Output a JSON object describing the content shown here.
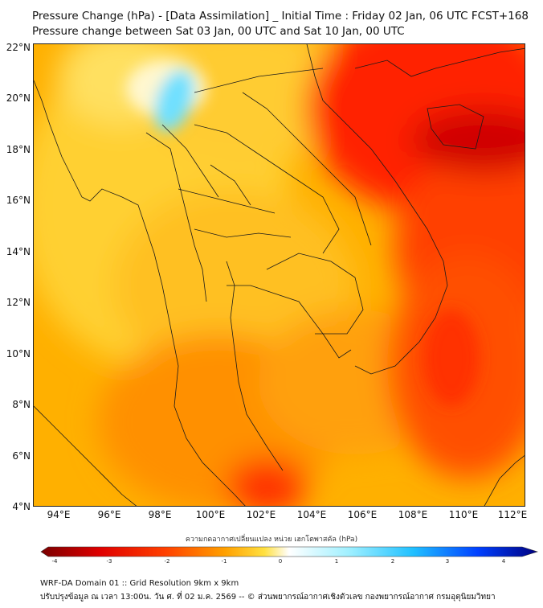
{
  "title": {
    "line1": "Pressure Change (hPa) - [Data Assimilation] _ Initial Time : Friday 02 Jan, 06 UTC FCST+168",
    "line2": "Pressure change between Sat 03 Jan, 00 UTC and Sat 10 Jan, 00 UTC"
  },
  "map": {
    "lat_labels": [
      "22°N",
      "20°N",
      "18°N",
      "16°N",
      "14°N",
      "12°N",
      "10°N",
      "8°N",
      "6°N",
      "4°N"
    ],
    "lon_labels": [
      "94°E",
      "96°E",
      "98°E",
      "100°E",
      "102°E",
      "104°E",
      "106°E",
      "108°E",
      "110°E",
      "112°E"
    ],
    "extent": {
      "lon_min": 93.0,
      "lon_max": 112.5,
      "lat_min": 4.0,
      "lat_max": 22.2
    }
  },
  "colorbar": {
    "label": "ความกดอากาศเปลี่ยนแปลง หน่วย เฮกโตพาสคัล (hPa)",
    "ticks": [
      "-4",
      "-3",
      "-2",
      "-1",
      "0",
      "1",
      "2",
      "3",
      "4"
    ],
    "colors": [
      "#7a0000",
      "#e00000",
      "#ff4000",
      "#ffa000",
      "#ffe040",
      "#ffffff",
      "#a0f0ff",
      "#20c0ff",
      "#0040ff",
      "#000080"
    ]
  },
  "footer": {
    "line1": "WRF-DA Domain 01 :: Grid Resolution 9km x 9km",
    "line2": "ปรับปรุงข้อมูล ณ เวลา 13:00น. วัน ศ. ที่ 02 ม.ค. 2569 -- © ส่วนพยากรณ์อากาศเชิงตัวเลข กองพยากรณ์อากาศ กรมอุตุนิยมวิทยา"
  }
}
